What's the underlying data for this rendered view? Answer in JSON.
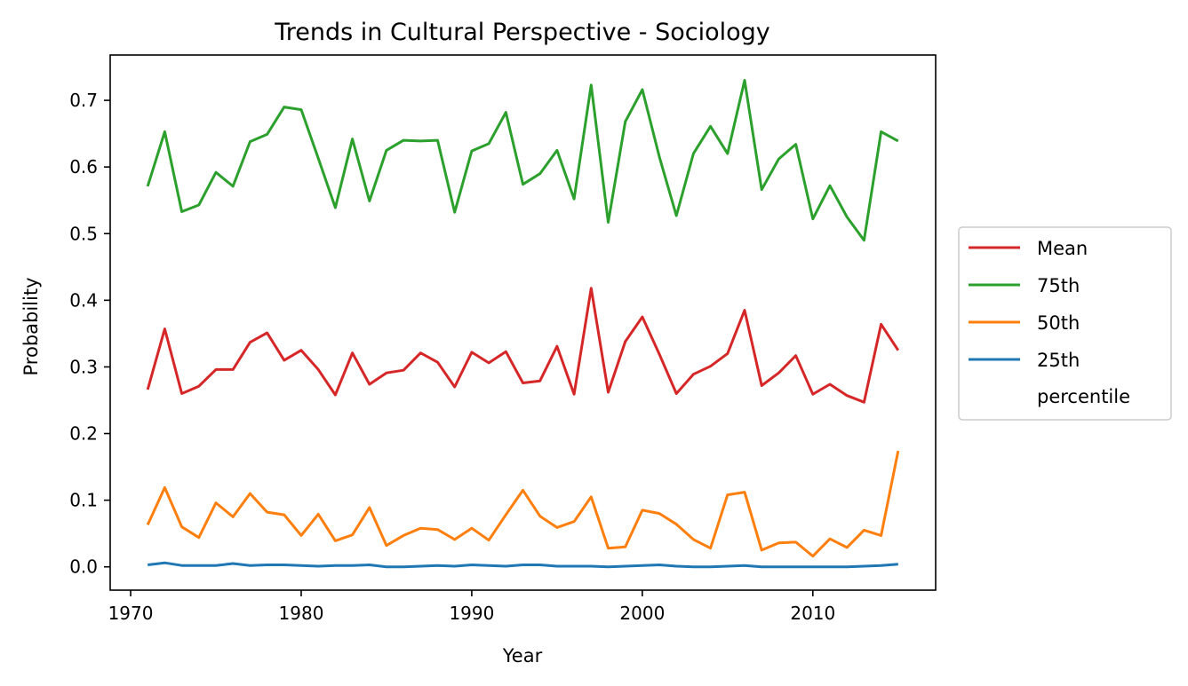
{
  "chart_data": {
    "type": "line",
    "title": "Trends in Cultural Perspective - Sociology",
    "xlabel": "Year",
    "ylabel": "Probability",
    "xlim": [
      1968.8,
      2017.2
    ],
    "ylim": [
      -0.035,
      0.768
    ],
    "xticks": [
      1970,
      1980,
      1990,
      2000,
      2010
    ],
    "yticks": [
      0.0,
      0.1,
      0.2,
      0.3,
      0.4,
      0.5,
      0.6,
      0.7
    ],
    "grid": false,
    "legend_position": "right-outside",
    "legend_extra_text": "percentile",
    "x": [
      1971,
      1972,
      1973,
      1974,
      1975,
      1976,
      1977,
      1978,
      1979,
      1980,
      1981,
      1982,
      1983,
      1984,
      1985,
      1986,
      1987,
      1988,
      1989,
      1990,
      1991,
      1992,
      1993,
      1994,
      1995,
      1996,
      1997,
      1998,
      1999,
      2000,
      2001,
      2002,
      2003,
      2004,
      2005,
      2006,
      2007,
      2008,
      2009,
      2010,
      2011,
      2012,
      2013,
      2014,
      2015
    ],
    "series": [
      {
        "name": "Mean",
        "color": "#d62728",
        "values": [
          0.266,
          0.357,
          0.26,
          0.271,
          0.296,
          0.296,
          0.337,
          0.351,
          0.31,
          0.325,
          0.296,
          0.258,
          0.321,
          0.274,
          0.291,
          0.295,
          0.321,
          0.307,
          0.27,
          0.322,
          0.306,
          0.323,
          0.276,
          0.279,
          0.331,
          0.259,
          0.418,
          0.262,
          0.338,
          0.375,
          0.319,
          0.26,
          0.289,
          0.301,
          0.32,
          0.385,
          0.272,
          0.291,
          0.317,
          0.259,
          0.274,
          0.257,
          0.247,
          0.364,
          0.325
        ]
      },
      {
        "name": "75th",
        "color": "#2ca02c",
        "values": [
          0.571,
          0.653,
          0.533,
          0.543,
          0.592,
          0.571,
          0.638,
          0.649,
          0.69,
          0.686,
          0.613,
          0.539,
          0.642,
          0.549,
          0.625,
          0.64,
          0.639,
          0.64,
          0.532,
          0.624,
          0.635,
          0.682,
          0.574,
          0.59,
          0.625,
          0.552,
          0.723,
          0.517,
          0.668,
          0.716,
          0.615,
          0.527,
          0.62,
          0.661,
          0.62,
          0.73,
          0.566,
          0.612,
          0.634,
          0.522,
          0.572,
          0.525,
          0.49,
          0.653,
          0.639
        ]
      },
      {
        "name": "50th",
        "color": "#ff7f0e",
        "values": [
          0.063,
          0.119,
          0.06,
          0.044,
          0.096,
          0.075,
          0.11,
          0.082,
          0.078,
          0.047,
          0.079,
          0.039,
          0.048,
          0.089,
          0.032,
          0.047,
          0.058,
          0.056,
          0.041,
          0.058,
          0.04,
          0.078,
          0.115,
          0.076,
          0.059,
          0.068,
          0.105,
          0.028,
          0.03,
          0.085,
          0.08,
          0.064,
          0.041,
          0.028,
          0.108,
          0.112,
          0.025,
          0.036,
          0.037,
          0.016,
          0.042,
          0.029,
          0.055,
          0.047,
          0.174
        ]
      },
      {
        "name": "25th",
        "color": "#1f77b4",
        "values": [
          0.003,
          0.006,
          0.002,
          0.002,
          0.002,
          0.005,
          0.002,
          0.003,
          0.003,
          0.002,
          0.001,
          0.002,
          0.002,
          0.003,
          0.0,
          0.0,
          0.001,
          0.002,
          0.001,
          0.003,
          0.002,
          0.001,
          0.003,
          0.003,
          0.001,
          0.001,
          0.001,
          0.0,
          0.001,
          0.002,
          0.003,
          0.001,
          0.0,
          0.0,
          0.001,
          0.002,
          0.0,
          0.0,
          0.0,
          0.0,
          0.0,
          0.0,
          0.001,
          0.002,
          0.004
        ]
      }
    ]
  }
}
